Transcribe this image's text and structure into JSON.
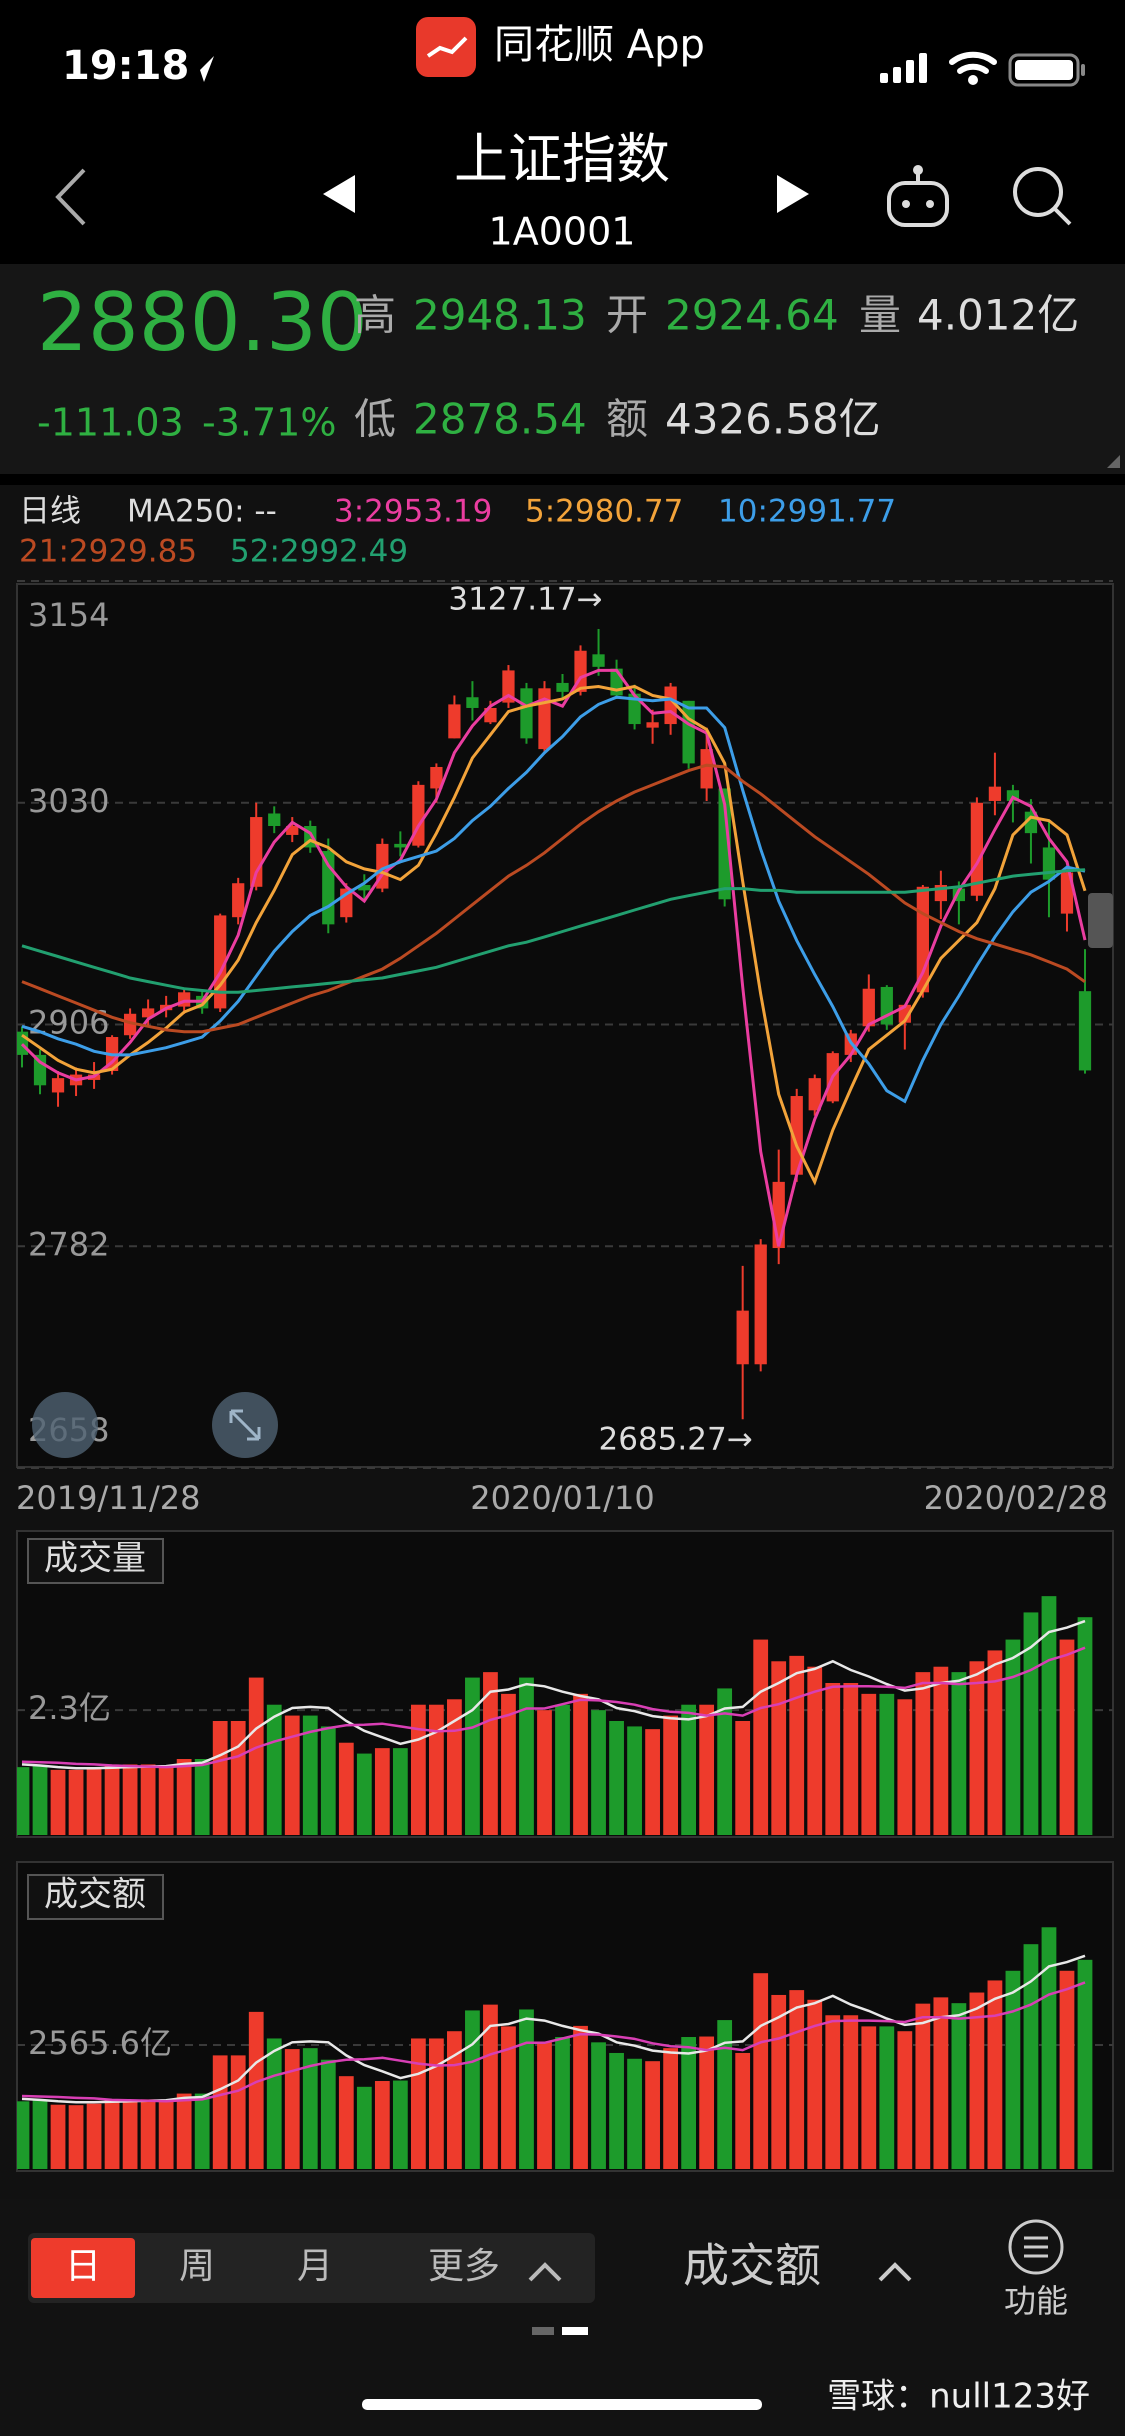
{
  "status_bar": {
    "time": "19:18",
    "app": "同花顺 App"
  },
  "header": {
    "title": "上证指数",
    "code": "1A0001"
  },
  "quote": {
    "price": "2880.30",
    "high_label": "高",
    "high": 2948.13,
    "open_label": "开",
    "open": 2924.64,
    "volume_label": "量",
    "volume": "4.012亿",
    "change": -111.03,
    "change_pct": "-3.71%",
    "low_label": "低",
    "low": 2878.54,
    "amount_label": "额",
    "amount": "4326.58亿"
  },
  "ma_legend": {
    "period": "日线",
    "ma250": "MA250: --"
  },
  "chart_data": [
    {
      "type": "candlestick",
      "up_color": "#ee3b2c",
      "down_color": "#1d9b2b",
      "grid": true,
      "categories": [
        "2019/11/28",
        null,
        null,
        null,
        null,
        null,
        null,
        null,
        null,
        null,
        null,
        null,
        null,
        null,
        null,
        null,
        null,
        null,
        null,
        null,
        null,
        null,
        null,
        null,
        null,
        null,
        null,
        null,
        null,
        null,
        "2020/01/10",
        null,
        null,
        null,
        null,
        null,
        null,
        null,
        null,
        null,
        null,
        null,
        null,
        null,
        null,
        null,
        null,
        null,
        null,
        null,
        null,
        null,
        null,
        null,
        null,
        null,
        null,
        null,
        null,
        "2020/02/28"
      ],
      "open": [
        2902,
        2889,
        2868,
        2872,
        2875,
        2880,
        2900,
        2910,
        2914,
        2916,
        2922,
        2915,
        2966,
        2983,
        3024,
        3012,
        3017,
        3003,
        2966,
        2984,
        2982,
        3007,
        3006,
        3038,
        3066,
        3089,
        3075,
        3086,
        3094,
        3060,
        3097,
        3092,
        3113,
        3105,
        3091,
        3072,
        3074,
        3087,
        3038,
        3038,
        2716,
        2716,
        2781,
        2822,
        2858,
        2863,
        2889,
        2905,
        2927,
        2907,
        2924,
        2975,
        2982,
        2978,
        3031,
        3037,
        3025,
        3005,
        2968,
        2924.64
      ],
      "high": [
        2905,
        2892,
        2880,
        2882,
        2885,
        2900,
        2915,
        2920,
        2922,
        2926,
        2925,
        2968,
        2988,
        3030,
        3028,
        3022,
        3020,
        3010,
        2985,
        2990,
        3010,
        3014,
        3042,
        3052,
        3090,
        3098,
        3087,
        3107,
        3097,
        3098,
        3102,
        3118,
        3127.17,
        3110,
        3096,
        3082,
        3097,
        3087,
        3072,
        3038,
        2771,
        2786,
        2836,
        2870,
        2878,
        2891,
        2903,
        2934,
        2928,
        2917,
        2984,
        2992,
        2986,
        3033,
        3058,
        3040,
        3032,
        3020,
        2992,
        2948.13
      ],
      "low": [
        2882,
        2867,
        2860,
        2866,
        2870,
        2878,
        2898,
        2905,
        2910,
        2912,
        2912,
        2913,
        2962,
        2981,
        3013,
        3008,
        3002,
        2957,
        2963,
        2975,
        2980,
        3000,
        3005,
        3030,
        3066,
        3076,
        3074,
        3083,
        3063,
        3058,
        3088,
        3090,
        3101,
        3088,
        3071,
        3063,
        3068,
        3049,
        3031,
        2972,
        2685.27,
        2712,
        2772,
        2818,
        2855,
        2862,
        2885,
        2902,
        2903,
        2892,
        2921,
        2965,
        2962,
        2975,
        3023,
        3019,
        2996,
        2966,
        2958,
        2878.54
      ],
      "close": [
        2889,
        2872,
        2876,
        2878,
        2878,
        2899,
        2912,
        2915,
        2917,
        2924,
        2915,
        2967,
        2985,
        3022,
        3017,
        3017,
        3005,
        2962,
        2982,
        2981,
        3007,
        3005,
        3040,
        3050,
        3085,
        3083,
        3083,
        3104,
        3066,
        3094,
        3092,
        3115,
        3106,
        3090,
        3074,
        3075,
        3095,
        3052,
        3060,
        2976,
        2746,
        2783,
        2818,
        2866,
        2876,
        2890,
        2901,
        2926,
        2906,
        2917,
        2983,
        2984,
        2975,
        3030,
        3039,
        3031,
        3013,
        2987,
        2991,
        2880.3
      ],
      "series": [
        {
          "name": "3:2953.19",
          "color": "#ea3da0",
          "values": [
            2895,
            2885,
            2879,
            2875,
            2877,
            2885,
            2896,
            2909,
            2915,
            2919,
            2919,
            2935,
            2956,
            2991,
            3008,
            3019,
            3013,
            2995,
            2983,
            2975,
            2990,
            2998,
            3017,
            3032,
            3058,
            3073,
            3084,
            3090,
            3084,
            3088,
            3084,
            3100,
            3104,
            3104,
            3090,
            3080,
            3081,
            3074,
            3069,
            3029,
            2927,
            2835,
            2782,
            2822,
            2853,
            2877,
            2889,
            2906,
            2911,
            2916,
            2935,
            2961,
            2981,
            2996,
            3015,
            3033,
            3028,
            3010,
            2997,
            2953.19
          ]
        },
        {
          "name": "5:2980.77",
          "color": "#f2a33a",
          "values": [
            2900,
            2893,
            2886,
            2881,
            2879,
            2881,
            2889,
            2896,
            2904,
            2913,
            2917,
            2928,
            2942,
            2963,
            2981,
            3001,
            3009,
            3005,
            2997,
            2993,
            2991,
            2987,
            2995,
            3013,
            3033,
            3055,
            3068,
            3081,
            3084,
            3086,
            3088,
            3094,
            3095,
            3093,
            3095,
            3090,
            3088,
            3077,
            3071,
            3052,
            2986,
            2923,
            2867,
            2838,
            2818,
            2847,
            2870,
            2892,
            2900,
            2908,
            2925,
            2943,
            2953,
            2963,
            2982,
            3012,
            3022,
            3020,
            3012,
            2980.77
          ]
        },
        {
          "name": "10:2991.77",
          "color": "#3d9ee8",
          "values": [
            2905,
            2902,
            2898,
            2895,
            2891,
            2889,
            2889,
            2891,
            2893,
            2896,
            2899,
            2908,
            2919,
            2933,
            2947,
            2958,
            2967,
            2972,
            2979,
            2985,
            2993,
            2997,
            3000,
            3003,
            3010,
            3020,
            3028,
            3038,
            3047,
            3058,
            3067,
            3078,
            3085,
            3089,
            3088,
            3087,
            3088,
            3083,
            3083,
            3072,
            3037,
            3004,
            2975,
            2953,
            2934,
            2916,
            2896,
            2884,
            2869,
            2863,
            2886,
            2906,
            2922,
            2939,
            2955,
            2969,
            2980,
            2986,
            2994,
            2991.77
          ]
        },
        {
          "name": "21:2929.85",
          "color": "#bb4a22",
          "values": [
            2930,
            2926,
            2922,
            2918,
            2914,
            2910,
            2907,
            2905,
            2903,
            2902,
            2902,
            2904,
            2906,
            2910,
            2914,
            2918,
            2922,
            2925,
            2929,
            2933,
            2937,
            2943,
            2950,
            2957,
            2965,
            2973,
            2981,
            2989,
            2995,
            3002,
            3010,
            3018,
            3025,
            3031,
            3036,
            3040,
            3044,
            3048,
            3051,
            3050,
            3042,
            3035,
            3027,
            3019,
            3011,
            3004,
            2997,
            2990,
            2982,
            2974,
            2968,
            2963,
            2958,
            2954,
            2951,
            2948,
            2945,
            2941,
            2937,
            2929.85
          ]
        },
        {
          "name": "52:2992.49",
          "color": "#22a070",
          "values": [
            2950,
            2947,
            2944,
            2941,
            2938,
            2935,
            2932,
            2930,
            2928,
            2926,
            2925,
            2924,
            2924,
            2925,
            2926,
            2927,
            2928,
            2929,
            2930,
            2931,
            2932,
            2934,
            2936,
            2938,
            2941,
            2944,
            2947,
            2950,
            2952,
            2955,
            2958,
            2961,
            2964,
            2967,
            2970,
            2973,
            2976,
            2978,
            2980,
            2982,
            2982,
            2981,
            2981,
            2980,
            2980,
            2980,
            2980,
            2980,
            2980,
            2980,
            2981,
            2982,
            2983,
            2985,
            2987,
            2989,
            2990,
            2991,
            2992,
            2992.49
          ]
        }
      ],
      "ylim": [
        2658,
        3154
      ],
      "yticks": [
        2658,
        2782,
        2906,
        3030,
        3154
      ],
      "annotations": [
        {
          "text": "3127.17→"
        },
        {
          "text": "2685.27→"
        }
      ]
    },
    {
      "type": "bar",
      "title": "成交量",
      "values": [
        1.25,
        1.28,
        1.2,
        1.2,
        1.22,
        1.3,
        1.3,
        1.3,
        1.25,
        1.4,
        1.4,
        2.1,
        2.1,
        2.9,
        2.4,
        2.2,
        2.2,
        2.0,
        1.7,
        1.5,
        1.6,
        1.6,
        2.4,
        2.4,
        2.5,
        2.9,
        3.0,
        2.6,
        2.9,
        2.3,
        2.4,
        2.6,
        2.3,
        2.1,
        2.0,
        1.95,
        2.2,
        2.4,
        2.4,
        2.7,
        2.1,
        3.6,
        3.2,
        3.3,
        3.1,
        2.8,
        2.8,
        2.6,
        2.6,
        2.5,
        3.0,
        3.1,
        3.0,
        3.2,
        3.4,
        3.6,
        4.1,
        4.4,
        3.6,
        4.012
      ],
      "lines": [
        {
          "color": "#e8e8e8",
          "values": [
            1.3,
            1.28,
            1.25,
            1.23,
            1.23,
            1.24,
            1.25,
            1.26,
            1.27,
            1.31,
            1.33,
            1.47,
            1.63,
            1.96,
            2.18,
            2.34,
            2.36,
            2.34,
            2.1,
            1.92,
            1.8,
            1.68,
            1.76,
            1.9,
            2.1,
            2.3,
            2.64,
            2.68,
            2.78,
            2.74,
            2.64,
            2.56,
            2.5,
            2.34,
            2.28,
            2.19,
            2.15,
            2.13,
            2.19,
            2.33,
            2.36,
            2.64,
            2.8,
            2.98,
            3.06,
            3.2,
            3.04,
            2.92,
            2.78,
            2.66,
            2.7,
            2.8,
            2.84,
            2.96,
            3.14,
            3.26,
            3.46,
            3.74,
            3.82,
            3.94
          ]
        },
        {
          "color": "#d83fb5",
          "values": [
            1.35,
            1.34,
            1.33,
            1.31,
            1.3,
            1.28,
            1.27,
            1.26,
            1.25,
            1.27,
            1.29,
            1.37,
            1.45,
            1.61,
            1.72,
            1.81,
            1.9,
            1.97,
            2.02,
            2.03,
            2.05,
            2.0,
            1.95,
            1.91,
            1.92,
            1.98,
            2.12,
            2.21,
            2.33,
            2.33,
            2.41,
            2.49,
            2.48,
            2.45,
            2.4,
            2.32,
            2.27,
            2.25,
            2.2,
            2.24,
            2.2,
            2.34,
            2.41,
            2.53,
            2.64,
            2.73,
            2.74,
            2.74,
            2.73,
            2.71,
            2.8,
            2.8,
            2.78,
            2.8,
            2.83,
            2.91,
            3.04,
            3.22,
            3.32,
            3.45
          ]
        }
      ],
      "ylim": [
        0,
        5.6
      ],
      "yticks": [
        {
          "value": 2.3,
          "label": "2.3亿"
        }
      ]
    },
    {
      "type": "bar",
      "title": "成交额",
      "values": [
        1400,
        1420,
        1330,
        1320,
        1350,
        1440,
        1430,
        1440,
        1390,
        1560,
        1560,
        2350,
        2350,
        3250,
        2700,
        2480,
        2500,
        2260,
        1920,
        1700,
        1820,
        1830,
        2700,
        2700,
        2850,
        3280,
        3400,
        2950,
        3300,
        2620,
        2730,
        2960,
        2620,
        2400,
        2280,
        2230,
        2500,
        2730,
        2740,
        3080,
        2400,
        4050,
        3600,
        3700,
        3500,
        3180,
        3180,
        2950,
        2950,
        2850,
        3420,
        3550,
        3430,
        3650,
        3900,
        4100,
        4650,
        5000,
        4100,
        4326.58
      ],
      "lines": [
        {
          "color": "#e8e8e8",
          "values": [
            1450,
            1430,
            1400,
            1380,
            1380,
            1390,
            1400,
            1410,
            1420,
            1470,
            1490,
            1650,
            1830,
            2200,
            2440,
            2620,
            2640,
            2620,
            2350,
            2150,
            2020,
            1880,
            1970,
            2130,
            2350,
            2580,
            2960,
            3000,
            3110,
            3070,
            2960,
            2870,
            2800,
            2620,
            2550,
            2450,
            2410,
            2390,
            2450,
            2610,
            2640,
            2960,
            3140,
            3340,
            3430,
            3580,
            3400,
            3270,
            3110,
            2980,
            3020,
            3140,
            3180,
            3320,
            3520,
            3650,
            3880,
            4190,
            4280,
            4410
          ]
        },
        {
          "color": "#d83fb5",
          "values": [
            1510,
            1500,
            1490,
            1470,
            1460,
            1430,
            1420,
            1410,
            1400,
            1420,
            1440,
            1530,
            1620,
            1800,
            1930,
            2030,
            2130,
            2210,
            2260,
            2270,
            2300,
            2240,
            2180,
            2140,
            2150,
            2220,
            2370,
            2480,
            2610,
            2610,
            2700,
            2790,
            2780,
            2740,
            2690,
            2600,
            2540,
            2520,
            2460,
            2510,
            2460,
            2620,
            2700,
            2830,
            2960,
            3060,
            3070,
            3070,
            3060,
            3040,
            3140,
            3140,
            3110,
            3140,
            3170,
            3260,
            3400,
            3610,
            3720,
            3860
          ]
        }
      ],
      "ylim": [
        0,
        6350
      ],
      "yticks": [
        {
          "value": 2565.6,
          "label": "2565.6亿"
        }
      ]
    }
  ],
  "bottom_bar": {
    "tabs": [
      "日",
      "周",
      "月",
      "更多"
    ],
    "selected": 0,
    "indicator": "成交额",
    "function": "功能"
  },
  "watermark": "雪球：null123好"
}
